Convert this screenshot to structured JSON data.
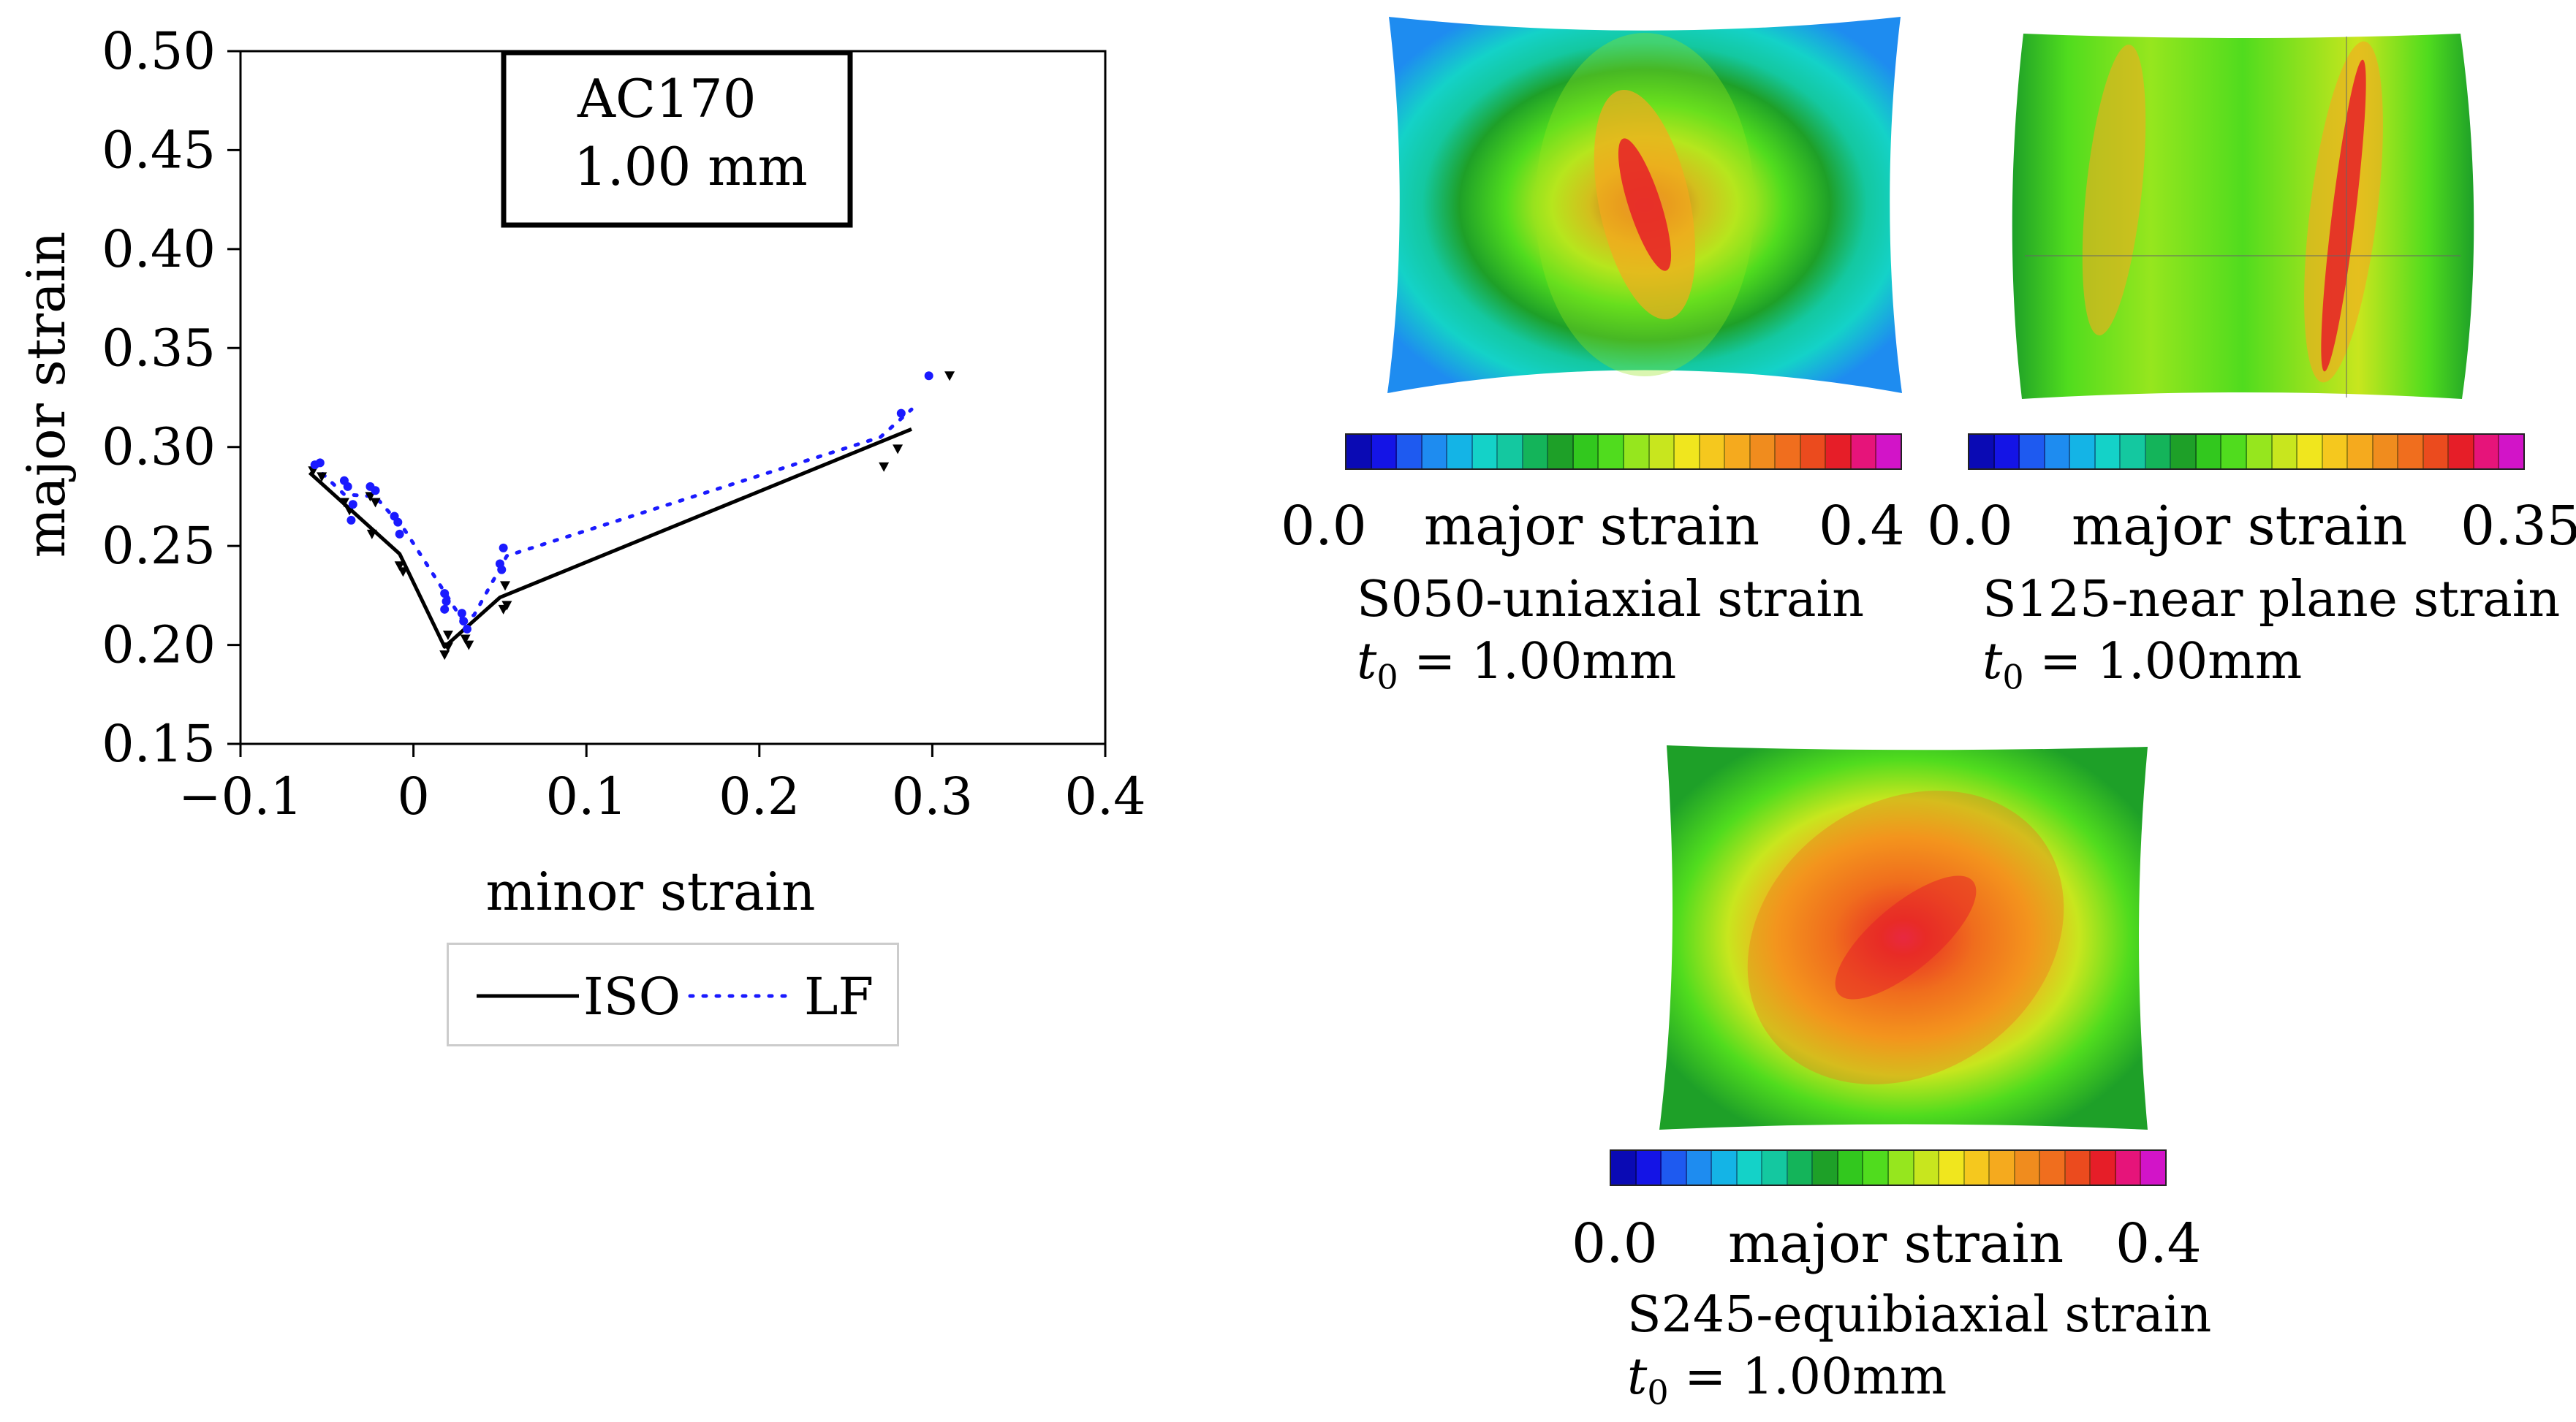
{
  "chart_data": {
    "type": "line",
    "title": "AC170",
    "thickness": "1.00 mm",
    "xlabel": "minor strain",
    "ylabel": "major strain",
    "xlim": [
      -0.1,
      0.4
    ],
    "ylim": [
      0.15,
      0.5
    ],
    "xticks": [
      -0.1,
      0,
      0.1,
      0.2,
      0.3,
      0.4
    ],
    "xtick_labels": [
      "−0.1",
      "0",
      "0.1",
      "0.2",
      "0.3",
      "0.4"
    ],
    "yticks": [
      0.15,
      0.2,
      0.25,
      0.3,
      0.35,
      0.4,
      0.45,
      0.5
    ],
    "ytick_labels": [
      "0.15",
      "0.20",
      "0.25",
      "0.30",
      "0.35",
      "0.40",
      "0.45",
      "0.50"
    ],
    "series": [
      {
        "name": "ISO",
        "style": "solid",
        "color": "#000000",
        "marker": "triangle-down",
        "line": [
          [
            -0.06,
            0.287
          ],
          [
            -0.008,
            0.246
          ],
          [
            0.018,
            0.199
          ],
          [
            0.05,
            0.224
          ],
          [
            0.288,
            0.309
          ]
        ],
        "points": [
          [
            -0.058,
            0.288
          ],
          [
            -0.053,
            0.285
          ],
          [
            -0.04,
            0.272
          ],
          [
            -0.037,
            0.268
          ],
          [
            -0.025,
            0.275
          ],
          [
            -0.022,
            0.272
          ],
          [
            -0.024,
            0.256
          ],
          [
            -0.008,
            0.24
          ],
          [
            -0.006,
            0.237
          ],
          [
            0.018,
            0.195
          ],
          [
            0.02,
            0.199
          ],
          [
            0.02,
            0.205
          ],
          [
            0.03,
            0.203
          ],
          [
            0.032,
            0.2
          ],
          [
            0.052,
            0.218
          ],
          [
            0.054,
            0.22
          ],
          [
            0.053,
            0.23
          ],
          [
            0.272,
            0.29
          ],
          [
            0.28,
            0.299
          ],
          [
            0.31,
            0.336
          ]
        ]
      },
      {
        "name": "LF",
        "style": "dotted",
        "color": "#1a1aff",
        "marker": "circle",
        "line": [
          [
            -0.058,
            0.291
          ],
          [
            -0.04,
            0.276
          ],
          [
            -0.022,
            0.275
          ],
          [
            -0.005,
            0.258
          ],
          [
            0.02,
            0.224
          ],
          [
            0.028,
            0.213
          ],
          [
            0.035,
            0.215
          ],
          [
            0.054,
            0.245
          ],
          [
            0.27,
            0.305
          ],
          [
            0.288,
            0.319
          ]
        ],
        "points": [
          [
            -0.057,
            0.291
          ],
          [
            -0.054,
            0.292
          ],
          [
            -0.04,
            0.283
          ],
          [
            -0.038,
            0.28
          ],
          [
            -0.035,
            0.271
          ],
          [
            -0.036,
            0.263
          ],
          [
            -0.025,
            0.28
          ],
          [
            -0.022,
            0.278
          ],
          [
            -0.011,
            0.265
          ],
          [
            -0.009,
            0.262
          ],
          [
            -0.008,
            0.256
          ],
          [
            0.018,
            0.226
          ],
          [
            0.019,
            0.222
          ],
          [
            0.018,
            0.218
          ],
          [
            0.028,
            0.216
          ],
          [
            0.029,
            0.212
          ],
          [
            0.031,
            0.208
          ],
          [
            0.05,
            0.241
          ],
          [
            0.051,
            0.238
          ],
          [
            0.052,
            0.249
          ],
          [
            0.282,
            0.317
          ],
          [
            0.298,
            0.336
          ]
        ]
      }
    ],
    "legend": [
      "ISO",
      "LF"
    ]
  },
  "specimens": [
    {
      "colorbar_min": "0.0",
      "colorbar_label": "major strain",
      "colorbar_max": "0.4",
      "name": "S050-uniaxial strain",
      "t_symbol": "t",
      "t_sub": "0",
      "t_value": " = 1.00mm"
    },
    {
      "colorbar_min": "0.0",
      "colorbar_label": "major strain",
      "colorbar_max": "0.35",
      "name": "S125-near plane strain",
      "t_symbol": "t",
      "t_sub": "0",
      "t_value": " = 1.00mm"
    },
    {
      "colorbar_min": "0.0",
      "colorbar_label": "major strain",
      "colorbar_max": "0.4",
      "name": "S245-equibiaxial strain",
      "t_symbol": "t",
      "t_sub": "0",
      "t_value": " = 1.00mm"
    }
  ],
  "colormap": [
    "#0a0ab4",
    "#1414e6",
    "#1e5af0",
    "#1e8cf0",
    "#14b4e6",
    "#14d2c8",
    "#14c8a0",
    "#14b45a",
    "#1ea028",
    "#32c81e",
    "#50dc1e",
    "#96e61e",
    "#c8e61e",
    "#f0e61e",
    "#f5c81e",
    "#f5aa1e",
    "#f08c1e",
    "#f06e1e",
    "#eb4b1e",
    "#e61e28",
    "#e6147a",
    "#d214c8"
  ]
}
